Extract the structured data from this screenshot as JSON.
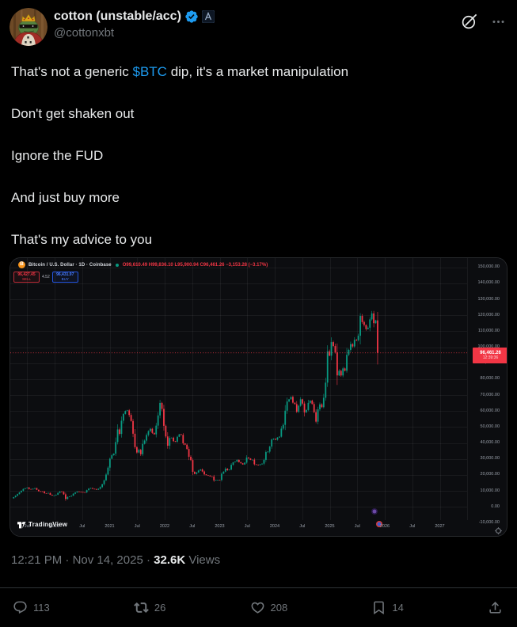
{
  "header": {
    "display_name": "cotton (unstable/acc)",
    "handle": "@cottonxbt",
    "badges": {
      "verified": "verified-seal-blue",
      "affiliate": "affiliate-square-logo"
    },
    "top_icons": {
      "grok": "grok-slashed-circle",
      "more": "ellipsis-menu"
    }
  },
  "tweet": {
    "line1_prefix": "That's not a generic ",
    "line1_link": "$BTC",
    "line1_suffix": " dip, it's a market manipulation",
    "line2": "Don't get shaken out",
    "line3": "Ignore the FUD",
    "line4": "And just buy more",
    "line5": "That's my advice to you"
  },
  "meta": {
    "time": "12:21 PM",
    "date": "Nov 14, 2025",
    "separator": "·",
    "views_count": "32.6K",
    "views_label": "Views"
  },
  "actions": {
    "replies": "113",
    "reposts": "26",
    "likes": "208",
    "bookmarks": "14"
  },
  "chart_data": {
    "type": "candlestick",
    "title": "Bitcoin / U.S. Dollar · 1D · Coinbase",
    "symbol": "Bitcoin / U.S. Dollar",
    "interval": "1D",
    "exchange": "Coinbase",
    "ohlc_text": "O99,610.49 H99,836.10 L95,900.94 C96,461.26 −3,153.28 (−3.17%)",
    "sell": {
      "price": "96,427.45",
      "label": "SELL"
    },
    "spread": "4.52",
    "buy": {
      "price": "96,431.97",
      "label": "BUY"
    },
    "last_price": "96,461.26",
    "last_price_value": 96461.26,
    "countdown": "12:39:36",
    "watermark": "TradingView",
    "ylim": [
      -10000,
      150000
    ],
    "xlim_years": [
      2019.2,
      2027.55
    ],
    "grid": true,
    "legend_position": "top-left",
    "y_ticks": [
      "150,000.00",
      "140,000.00",
      "130,000.00",
      "120,000.00",
      "110,000.00",
      "100,000.00",
      "90,000.00",
      "80,000.00",
      "70,000.00",
      "60,000.00",
      "50,000.00",
      "40,000.00",
      "30,000.00",
      "20,000.00",
      "10,000.00",
      "0.00",
      "-10,000.00"
    ],
    "x_ticks": [
      {
        "label": "Jul",
        "t": 2019.5
      },
      {
        "label": "2020",
        "t": 2020.0
      },
      {
        "label": "Jul",
        "t": 2020.5
      },
      {
        "label": "2021",
        "t": 2021.0
      },
      {
        "label": "Jul",
        "t": 2021.5
      },
      {
        "label": "2022",
        "t": 2022.0
      },
      {
        "label": "Jul",
        "t": 2022.5
      },
      {
        "label": "2023",
        "t": 2023.0
      },
      {
        "label": "Jul",
        "t": 2023.5
      },
      {
        "label": "2024",
        "t": 2024.0
      },
      {
        "label": "Jul",
        "t": 2024.5
      },
      {
        "label": "2025",
        "t": 2025.0
      },
      {
        "label": "Jul",
        "t": 2025.5
      },
      {
        "label": "2026",
        "t": 2026.0
      },
      {
        "label": "Jul",
        "t": 2026.5
      },
      {
        "label": "2027",
        "t": 2027.0
      }
    ],
    "colors": {
      "up": "#089981",
      "down": "#f23645",
      "grid": "rgba(255,255,255,0.055)",
      "bg": "#0c0d10",
      "price_line": "#f23645"
    },
    "markers": [
      {
        "x": 460,
        "y": 320,
        "color": "#6d4aa8",
        "ring": "#2a1a4a"
      },
      {
        "x": 466,
        "y": 336,
        "color": "#3b5bd2",
        "ring": "#d23b3b"
      }
    ],
    "anchors": [
      [
        2019.22,
        5400
      ],
      [
        2019.3,
        7200
      ],
      [
        2019.42,
        10900
      ],
      [
        2019.5,
        12300
      ],
      [
        2019.55,
        10800
      ],
      [
        2019.63,
        11900
      ],
      [
        2019.7,
        10100
      ],
      [
        2019.78,
        9600
      ],
      [
        2019.82,
        8300
      ],
      [
        2019.88,
        9100
      ],
      [
        2019.93,
        7300
      ],
      [
        2020.0,
        7200
      ],
      [
        2020.05,
        8400
      ],
      [
        2020.1,
        9800
      ],
      [
        2020.15,
        8900
      ],
      [
        2020.2,
        5000
      ],
      [
        2020.24,
        6200
      ],
      [
        2020.3,
        6900
      ],
      [
        2020.36,
        9000
      ],
      [
        2020.42,
        9600
      ],
      [
        2020.5,
        9150
      ],
      [
        2020.55,
        9300
      ],
      [
        2020.6,
        11200
      ],
      [
        2020.65,
        11800
      ],
      [
        2020.7,
        11400
      ],
      [
        2020.75,
        10600
      ],
      [
        2020.8,
        11500
      ],
      [
        2020.85,
        13100
      ],
      [
        2020.88,
        15500
      ],
      [
        2020.92,
        18400
      ],
      [
        2020.96,
        23000
      ],
      [
        2021.0,
        29000
      ],
      [
        2021.03,
        33500
      ],
      [
        2021.06,
        31000
      ],
      [
        2021.1,
        38500
      ],
      [
        2021.14,
        48000
      ],
      [
        2021.18,
        46500
      ],
      [
        2021.22,
        54500
      ],
      [
        2021.26,
        58900
      ],
      [
        2021.3,
        59000
      ],
      [
        2021.33,
        63200
      ],
      [
        2021.36,
        56000
      ],
      [
        2021.4,
        53500
      ],
      [
        2021.44,
        40000
      ],
      [
        2021.47,
        36500
      ],
      [
        2021.5,
        34000
      ],
      [
        2021.53,
        35500
      ],
      [
        2021.56,
        32500
      ],
      [
        2021.6,
        39500
      ],
      [
        2021.64,
        42000
      ],
      [
        2021.68,
        46000
      ],
      [
        2021.72,
        48800
      ],
      [
        2021.76,
        47000
      ],
      [
        2021.8,
        43500
      ],
      [
        2021.84,
        48500
      ],
      [
        2021.87,
        57000
      ],
      [
        2021.9,
        61500
      ],
      [
        2021.93,
        66500
      ],
      [
        2021.96,
        57000
      ],
      [
        2022.0,
        46500
      ],
      [
        2022.03,
        42000
      ],
      [
        2022.06,
        36800
      ],
      [
        2022.1,
        44200
      ],
      [
        2022.14,
        43900
      ],
      [
        2022.18,
        38500
      ],
      [
        2022.22,
        42500
      ],
      [
        2022.26,
        46500
      ],
      [
        2022.3,
        45000
      ],
      [
        2022.34,
        39500
      ],
      [
        2022.38,
        38500
      ],
      [
        2022.42,
        34500
      ],
      [
        2022.45,
        30000
      ],
      [
        2022.48,
        29500
      ],
      [
        2022.52,
        19500
      ],
      [
        2022.55,
        20500
      ],
      [
        2022.58,
        21500
      ],
      [
        2022.62,
        23300
      ],
      [
        2022.66,
        24000
      ],
      [
        2022.7,
        21500
      ],
      [
        2022.74,
        20000
      ],
      [
        2022.78,
        19800
      ],
      [
        2022.82,
        19300
      ],
      [
        2022.85,
        20500
      ],
      [
        2022.88,
        16200
      ],
      [
        2022.92,
        16500
      ],
      [
        2022.96,
        17000
      ],
      [
        2023.0,
        16600
      ],
      [
        2023.04,
        21000
      ],
      [
        2023.08,
        23100
      ],
      [
        2023.12,
        24600
      ],
      [
        2023.16,
        22100
      ],
      [
        2023.2,
        25000
      ],
      [
        2023.24,
        28400
      ],
      [
        2023.28,
        28000
      ],
      [
        2023.32,
        29300
      ],
      [
        2023.36,
        27600
      ],
      [
        2023.4,
        27000
      ],
      [
        2023.44,
        26500
      ],
      [
        2023.48,
        30300
      ],
      [
        2023.52,
        30500
      ],
      [
        2023.56,
        29900
      ],
      [
        2023.6,
        29200
      ],
      [
        2023.64,
        26100
      ],
      [
        2023.68,
        26000
      ],
      [
        2023.72,
        25900
      ],
      [
        2023.76,
        26600
      ],
      [
        2023.8,
        28300
      ],
      [
        2023.84,
        34600
      ],
      [
        2023.88,
        35500
      ],
      [
        2023.92,
        37800
      ],
      [
        2023.96,
        43500
      ],
      [
        2024.0,
        42300
      ],
      [
        2024.04,
        42800
      ],
      [
        2024.08,
        43100
      ],
      [
        2024.12,
        48000
      ],
      [
        2024.16,
        52000
      ],
      [
        2024.2,
        61500
      ],
      [
        2024.24,
        70500
      ],
      [
        2024.27,
        67500
      ],
      [
        2024.3,
        71000
      ],
      [
        2024.33,
        65000
      ],
      [
        2024.36,
        63800
      ],
      [
        2024.4,
        60800
      ],
      [
        2024.44,
        63500
      ],
      [
        2024.48,
        67500
      ],
      [
        2024.52,
        61500
      ],
      [
        2024.56,
        57500
      ],
      [
        2024.6,
        63000
      ],
      [
        2024.64,
        66500
      ],
      [
        2024.68,
        64600
      ],
      [
        2024.72,
        58000
      ],
      [
        2024.75,
        54500
      ],
      [
        2024.78,
        59500
      ],
      [
        2024.82,
        63300
      ],
      [
        2024.86,
        60800
      ],
      [
        2024.88,
        67500
      ],
      [
        2024.92,
        75500
      ],
      [
        2024.94,
        90500
      ],
      [
        2024.96,
        97000
      ],
      [
        2024.98,
        95500
      ],
      [
        2025.0,
        93400
      ],
      [
        2025.02,
        102000
      ],
      [
        2025.05,
        104500
      ],
      [
        2025.07,
        102000
      ],
      [
        2025.09,
        97700
      ],
      [
        2025.11,
        96500
      ],
      [
        2025.13,
        84300
      ],
      [
        2025.16,
        80500
      ],
      [
        2025.18,
        86800
      ],
      [
        2025.2,
        84000
      ],
      [
        2025.22,
        82500
      ],
      [
        2025.25,
        87500
      ],
      [
        2025.28,
        85200
      ],
      [
        2025.31,
        94200
      ],
      [
        2025.34,
        96500
      ],
      [
        2025.37,
        103600
      ],
      [
        2025.4,
        97000
      ],
      [
        2025.43,
        104600
      ],
      [
        2025.46,
        107100
      ],
      [
        2025.49,
        105700
      ],
      [
        2025.52,
        108800
      ],
      [
        2025.55,
        118200
      ],
      [
        2025.58,
        116500
      ],
      [
        2025.6,
        119500
      ],
      [
        2025.62,
        113000
      ],
      [
        2025.64,
        108200
      ],
      [
        2025.66,
        112500
      ],
      [
        2025.68,
        111000
      ],
      [
        2025.7,
        114000
      ],
      [
        2025.72,
        112300
      ],
      [
        2025.75,
        120500
      ],
      [
        2025.77,
        125000
      ],
      [
        2025.79,
        121500
      ],
      [
        2025.81,
        111500
      ],
      [
        2025.83,
        113800
      ],
      [
        2025.85,
        116800
      ],
      [
        2025.865,
        110000
      ],
      [
        2025.88,
        103500
      ],
      [
        2025.89,
        99500
      ],
      [
        2025.9,
        96461.26
      ]
    ]
  }
}
